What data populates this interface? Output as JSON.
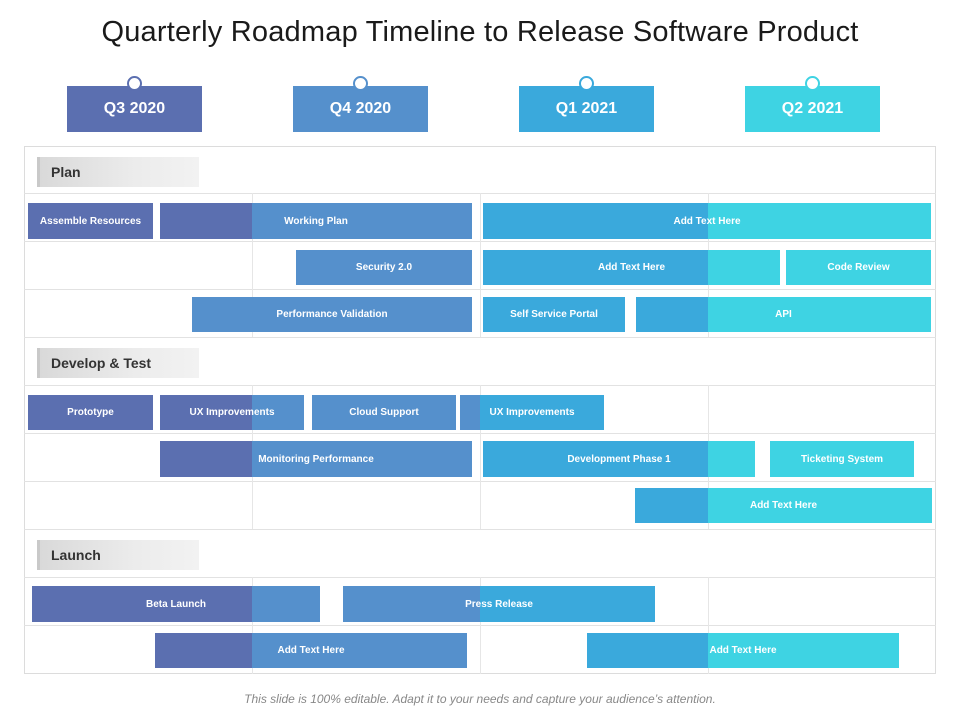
{
  "title": "Quarterly Roadmap Timeline to Release Software Product",
  "colors": {
    "q3": "#5b6fb0",
    "q4": "#5590cc",
    "q1": "#3aa9dc",
    "q2": "#3ed3e3"
  },
  "quarters": [
    {
      "label": "Q3 2020"
    },
    {
      "label": "Q4 2020"
    },
    {
      "label": "Q1 2021"
    },
    {
      "label": "Q2 2021"
    }
  ],
  "sections": [
    {
      "label": "Plan"
    },
    {
      "label": "Develop & Test"
    },
    {
      "label": "Launch"
    }
  ],
  "bars": [
    {
      "label": "Assemble Resources"
    },
    {
      "label": "Working Plan"
    },
    {
      "label": "Add Text Here"
    },
    {
      "label": "Security 2.0"
    },
    {
      "label": "Add Text Here"
    },
    {
      "label": "Code Review"
    },
    {
      "label": "Performance Validation"
    },
    {
      "label": "Self Service Portal"
    },
    {
      "label": "API"
    },
    {
      "label": "Prototype"
    },
    {
      "label": "UX Improvements"
    },
    {
      "label": "Cloud Support"
    },
    {
      "label": "UX Improvements"
    },
    {
      "label": "Monitoring Performance"
    },
    {
      "label": "Development Phase 1"
    },
    {
      "label": "Ticketing System"
    },
    {
      "label": "Add Text Here"
    },
    {
      "label": "Beta Launch"
    },
    {
      "label": "Press Release"
    },
    {
      "label": "Add Text Here"
    },
    {
      "label": "Add Text Here"
    }
  ],
  "footer": "This slide is 100% editable. Adapt it to your needs and capture your audience’s attention."
}
